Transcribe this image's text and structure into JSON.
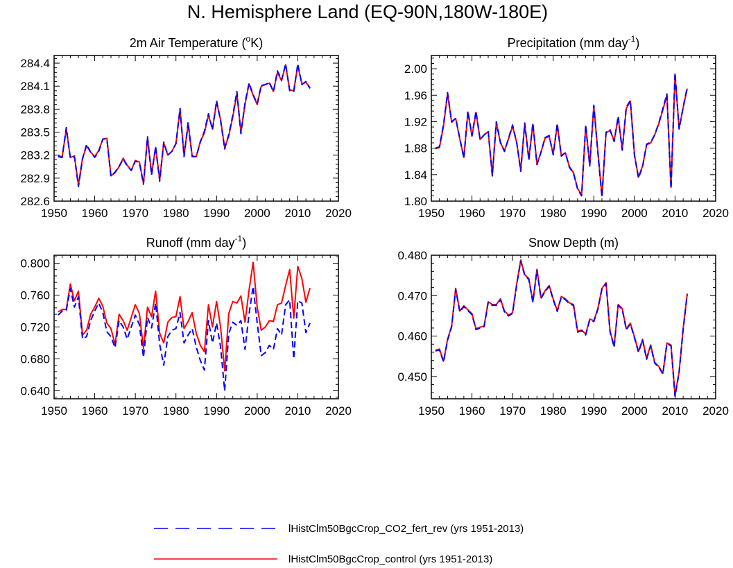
{
  "figure": {
    "title": "N. Hemisphere Land (EQ-90N,180W-180E)"
  },
  "legend": [
    {
      "label": "lHistClm50BgcCrop_CO2_fert_rev (yrs 1951-2013)",
      "color": "#0000ff",
      "dashed": true
    },
    {
      "label": "lHistClm50BgcCrop_control (yrs 1951-2013)",
      "color": "#ff0000",
      "dashed": false
    }
  ],
  "chart_data": [
    {
      "type": "line",
      "title": "2m Air Temperature (°K)",
      "title_parts": [
        "2m Air Temperature (",
        "o",
        "K)"
      ],
      "xlim": [
        1950,
        2020
      ],
      "x_ticks": [
        1950,
        1960,
        1970,
        1980,
        1990,
        2000,
        2010,
        2020
      ],
      "ylim": [
        282.6,
        284.5
      ],
      "y_ticks": [
        282.6,
        282.9,
        283.2,
        283.5,
        283.8,
        284.1,
        284.4
      ],
      "y_tick_labels": [
        "282.6",
        "282.9",
        "283.2",
        "283.5",
        "283.8",
        "284.1",
        "284.4"
      ],
      "x": [
        1951,
        1952,
        1953,
        1954,
        1955,
        1956,
        1957,
        1958,
        1959,
        1960,
        1961,
        1962,
        1963,
        1964,
        1965,
        1966,
        1967,
        1968,
        1969,
        1970,
        1971,
        1972,
        1973,
        1974,
        1975,
        1976,
        1977,
        1978,
        1979,
        1980,
        1981,
        1982,
        1983,
        1984,
        1985,
        1986,
        1987,
        1988,
        1989,
        1990,
        1991,
        1992,
        1993,
        1994,
        1995,
        1996,
        1997,
        1998,
        1999,
        2000,
        2001,
        2002,
        2003,
        2004,
        2005,
        2006,
        2007,
        2008,
        2009,
        2010,
        2011,
        2012,
        2013
      ],
      "series": [
        {
          "name": "lHistClm50BgcCrop_control (yrs 1951-2013)",
          "color": "#ff0000",
          "dashed": false,
          "values": [
            283.19,
            283.18,
            283.54,
            283.17,
            283.19,
            282.81,
            283.16,
            283.32,
            283.24,
            283.18,
            283.26,
            283.41,
            283.42,
            282.93,
            282.97,
            283.05,
            283.16,
            283.07,
            283.0,
            283.13,
            283.11,
            282.83,
            283.42,
            282.96,
            283.3,
            282.88,
            283.36,
            283.2,
            283.25,
            283.35,
            283.79,
            283.2,
            283.6,
            283.19,
            283.18,
            283.38,
            283.49,
            283.72,
            283.54,
            283.89,
            283.66,
            283.3,
            283.45,
            283.7,
            284.0,
            283.5,
            283.86,
            284.13,
            283.98,
            283.86,
            284.1,
            284.12,
            284.14,
            284.03,
            284.28,
            284.17,
            284.38,
            284.05,
            284.04,
            284.37,
            284.13,
            284.15,
            284.08
          ]
        },
        {
          "name": "lHistClm50BgcCrop_CO2_fert_rev (yrs 1951-2013)",
          "color": "#0000ff",
          "dashed": true,
          "values": [
            283.18,
            283.17,
            283.56,
            283.16,
            283.18,
            282.79,
            283.15,
            283.34,
            283.24,
            283.17,
            283.25,
            283.41,
            283.41,
            282.92,
            282.98,
            283.05,
            283.15,
            283.06,
            283.0,
            283.12,
            283.1,
            282.82,
            283.44,
            282.94,
            283.31,
            282.86,
            283.37,
            283.2,
            283.25,
            283.35,
            283.81,
            283.18,
            283.63,
            283.18,
            283.18,
            283.37,
            283.51,
            283.74,
            283.53,
            283.91,
            283.65,
            283.28,
            283.47,
            283.72,
            284.03,
            283.48,
            283.88,
            284.14,
            283.99,
            283.87,
            284.11,
            284.12,
            284.15,
            284.03,
            284.3,
            284.18,
            284.39,
            284.04,
            284.03,
            284.39,
            284.12,
            284.16,
            284.07
          ]
        }
      ]
    },
    {
      "type": "line",
      "title": "Precipitation (mm day⁻¹)",
      "title_parts": [
        "Precipitation (mm day",
        "-1",
        ")"
      ],
      "xlim": [
        1950,
        2020
      ],
      "x_ticks": [
        1950,
        1960,
        1970,
        1980,
        1990,
        2000,
        2010,
        2020
      ],
      "ylim": [
        1.8,
        2.02
      ],
      "y_ticks": [
        1.8,
        1.84,
        1.88,
        1.92,
        1.96,
        2.0
      ],
      "y_tick_labels": [
        "1.80",
        "1.84",
        "1.88",
        "1.92",
        "1.96",
        "2.00"
      ],
      "x": [
        1951,
        1952,
        1953,
        1954,
        1955,
        1956,
        1957,
        1958,
        1959,
        1960,
        1961,
        1962,
        1963,
        1964,
        1965,
        1966,
        1967,
        1968,
        1969,
        1970,
        1971,
        1972,
        1973,
        1974,
        1975,
        1976,
        1977,
        1978,
        1979,
        1980,
        1981,
        1982,
        1983,
        1984,
        1985,
        1986,
        1987,
        1988,
        1989,
        1990,
        1991,
        1992,
        1993,
        1994,
        1995,
        1996,
        1997,
        1998,
        1999,
        2000,
        2001,
        2002,
        2003,
        2004,
        2005,
        2006,
        2007,
        2008,
        2009,
        2010,
        2011,
        2012,
        2013
      ],
      "series": [
        {
          "name": "lHistClm50BgcCrop_control (yrs 1951-2013)",
          "color": "#ff0000",
          "dashed": false,
          "values": [
            1.879,
            1.881,
            1.914,
            1.962,
            1.919,
            1.925,
            1.894,
            1.866,
            1.934,
            1.898,
            1.934,
            1.893,
            1.9,
            1.905,
            1.84,
            1.918,
            1.888,
            1.876,
            1.894,
            1.913,
            1.889,
            1.847,
            1.916,
            1.864,
            1.916,
            1.856,
            1.874,
            1.895,
            1.898,
            1.871,
            1.915,
            1.869,
            1.873,
            1.852,
            1.843,
            1.819,
            1.81,
            1.913,
            1.855,
            1.943,
            1.875,
            1.808,
            1.903,
            1.907,
            1.891,
            1.926,
            1.878,
            1.94,
            1.951,
            1.87,
            1.836,
            1.853,
            1.885,
            1.888,
            1.9,
            1.917,
            1.938,
            1.96,
            1.821,
            1.99,
            1.91,
            1.941,
            1.97
          ]
        },
        {
          "name": "lHistClm50BgcCrop_CO2_fert_rev (yrs 1951-2013)",
          "color": "#0000ff",
          "dashed": true,
          "values": [
            1.88,
            1.882,
            1.916,
            1.964,
            1.92,
            1.925,
            1.895,
            1.865,
            1.936,
            1.899,
            1.936,
            1.893,
            1.9,
            1.906,
            1.838,
            1.92,
            1.889,
            1.875,
            1.895,
            1.915,
            1.889,
            1.845,
            1.918,
            1.862,
            1.918,
            1.855,
            1.874,
            1.896,
            1.899,
            1.87,
            1.917,
            1.868,
            1.873,
            1.851,
            1.842,
            1.818,
            1.808,
            1.915,
            1.853,
            1.945,
            1.874,
            1.806,
            1.904,
            1.908,
            1.89,
            1.928,
            1.877,
            1.942,
            1.952,
            1.869,
            1.835,
            1.852,
            1.886,
            1.889,
            1.9,
            1.918,
            1.94,
            1.962,
            1.819,
            1.994,
            1.909,
            1.942,
            1.972
          ]
        }
      ]
    },
    {
      "type": "line",
      "title": "Runoff (mm day⁻¹)",
      "title_parts": [
        "Runoff (mm day",
        "-1",
        ")"
      ],
      "xlim": [
        1950,
        2020
      ],
      "x_ticks": [
        1950,
        1960,
        1970,
        1980,
        1990,
        2000,
        2010,
        2020
      ],
      "ylim": [
        0.63,
        0.81
      ],
      "y_ticks": [
        0.64,
        0.68,
        0.72,
        0.76,
        0.8
      ],
      "y_tick_labels": [
        "0.640",
        "0.680",
        "0.720",
        "0.760",
        "0.800"
      ],
      "x": [
        1951,
        1952,
        1953,
        1954,
        1955,
        1956,
        1957,
        1958,
        1959,
        1960,
        1961,
        1962,
        1963,
        1964,
        1965,
        1966,
        1967,
        1968,
        1969,
        1970,
        1971,
        1972,
        1973,
        1974,
        1975,
        1976,
        1977,
        1978,
        1979,
        1980,
        1981,
        1982,
        1983,
        1984,
        1985,
        1986,
        1987,
        1988,
        1989,
        1990,
        1991,
        1992,
        1993,
        1994,
        1995,
        1996,
        1997,
        1998,
        1999,
        2000,
        2001,
        2002,
        2003,
        2004,
        2005,
        2006,
        2007,
        2008,
        2009,
        2010,
        2011,
        2012,
        2013
      ],
      "series": [
        {
          "name": "lHistClm50BgcCrop_control (yrs 1951-2013)",
          "color": "#ff0000",
          "dashed": false,
          "values": [
            0.739,
            0.742,
            0.742,
            0.774,
            0.753,
            0.765,
            0.71,
            0.716,
            0.736,
            0.745,
            0.756,
            0.746,
            0.725,
            0.718,
            0.698,
            0.736,
            0.728,
            0.716,
            0.732,
            0.748,
            0.737,
            0.693,
            0.745,
            0.733,
            0.765,
            0.712,
            0.7,
            0.726,
            0.732,
            0.733,
            0.758,
            0.718,
            0.727,
            0.738,
            0.712,
            0.697,
            0.689,
            0.748,
            0.72,
            0.752,
            0.72,
            0.665,
            0.737,
            0.752,
            0.75,
            0.759,
            0.726,
            0.766,
            0.801,
            0.745,
            0.716,
            0.72,
            0.728,
            0.727,
            0.748,
            0.75,
            0.772,
            0.792,
            0.731,
            0.796,
            0.781,
            0.751,
            0.769
          ]
        },
        {
          "name": "lHistClm50BgcCrop_CO2_fert_rev (yrs 1951-2013)",
          "color": "#0000ff",
          "dashed": true,
          "values": [
            0.735,
            0.74,
            0.741,
            0.768,
            0.745,
            0.758,
            0.705,
            0.708,
            0.728,
            0.74,
            0.75,
            0.738,
            0.714,
            0.708,
            0.694,
            0.728,
            0.72,
            0.705,
            0.72,
            0.735,
            0.723,
            0.682,
            0.732,
            0.719,
            0.75,
            0.698,
            0.672,
            0.708,
            0.716,
            0.718,
            0.738,
            0.7,
            0.71,
            0.718,
            0.695,
            0.678,
            0.666,
            0.728,
            0.7,
            0.725,
            0.695,
            0.64,
            0.712,
            0.726,
            0.722,
            0.728,
            0.692,
            0.736,
            0.771,
            0.725,
            0.684,
            0.688,
            0.697,
            0.692,
            0.718,
            0.71,
            0.748,
            0.754,
            0.68,
            0.753,
            0.75,
            0.713,
            0.725
          ]
        }
      ]
    },
    {
      "type": "line",
      "title": "Snow Depth (m)",
      "title_parts": [
        "Snow Depth (m)",
        "",
        ""
      ],
      "xlim": [
        1950,
        2020
      ],
      "x_ticks": [
        1950,
        1960,
        1970,
        1980,
        1990,
        2000,
        2010,
        2020
      ],
      "ylim": [
        0.4445,
        0.48
      ],
      "y_ticks": [
        0.45,
        0.46,
        0.47,
        0.48
      ],
      "y_tick_labels": [
        "0.450",
        "0.460",
        "0.470",
        "0.480"
      ],
      "x": [
        1951,
        1952,
        1953,
        1954,
        1955,
        1956,
        1957,
        1958,
        1959,
        1960,
        1961,
        1962,
        1963,
        1964,
        1965,
        1966,
        1967,
        1968,
        1969,
        1970,
        1971,
        1972,
        1973,
        1974,
        1975,
        1976,
        1977,
        1978,
        1979,
        1980,
        1981,
        1982,
        1983,
        1984,
        1985,
        1986,
        1987,
        1988,
        1989,
        1990,
        1991,
        1992,
        1993,
        1994,
        1995,
        1996,
        1997,
        1998,
        1999,
        2000,
        2001,
        2002,
        2003,
        2004,
        2005,
        2006,
        2007,
        2008,
        2009,
        2010,
        2011,
        2012,
        2013
      ],
      "series": [
        {
          "name": "lHistClm50BgcCrop_control (yrs 1951-2013)",
          "color": "#ff0000",
          "dashed": false,
          "values": [
            0.4565,
            0.4568,
            0.4538,
            0.4592,
            0.4625,
            0.4718,
            0.4662,
            0.4675,
            0.4665,
            0.4655,
            0.4618,
            0.4622,
            0.4625,
            0.4685,
            0.4678,
            0.4678,
            0.4692,
            0.4662,
            0.4652,
            0.4658,
            0.4728,
            0.4788,
            0.4752,
            0.4742,
            0.4685,
            0.4765,
            0.4695,
            0.4712,
            0.4725,
            0.4692,
            0.4663,
            0.4698,
            0.4692,
            0.4682,
            0.4678,
            0.4612,
            0.4615,
            0.4605,
            0.4642,
            0.4638,
            0.4668,
            0.4718,
            0.4732,
            0.4612,
            0.4575,
            0.4678,
            0.4668,
            0.4618,
            0.4632,
            0.4598,
            0.4562,
            0.4592,
            0.4545,
            0.4578,
            0.4535,
            0.4525,
            0.4508,
            0.4583,
            0.4578,
            0.4453,
            0.4512,
            0.4618,
            0.4705
          ]
        },
        {
          "name": "lHistClm50BgcCrop_CO2_fert_rev (yrs 1951-2013)",
          "color": "#0000ff",
          "dashed": true,
          "values": [
            0.4563,
            0.4566,
            0.4536,
            0.459,
            0.4623,
            0.4716,
            0.466,
            0.4673,
            0.4663,
            0.4653,
            0.4616,
            0.462,
            0.4623,
            0.4683,
            0.4676,
            0.4676,
            0.469,
            0.466,
            0.465,
            0.4656,
            0.4726,
            0.4786,
            0.475,
            0.474,
            0.4683,
            0.4763,
            0.4693,
            0.471,
            0.4723,
            0.469,
            0.4661,
            0.4696,
            0.469,
            0.468,
            0.4676,
            0.461,
            0.4613,
            0.4603,
            0.464,
            0.4636,
            0.4666,
            0.4716,
            0.473,
            0.461,
            0.4573,
            0.4676,
            0.4666,
            0.4616,
            0.463,
            0.4596,
            0.456,
            0.459,
            0.4543,
            0.4576,
            0.4533,
            0.4523,
            0.4506,
            0.4581,
            0.4576,
            0.4451,
            0.451,
            0.4616,
            0.4703
          ]
        }
      ]
    }
  ]
}
